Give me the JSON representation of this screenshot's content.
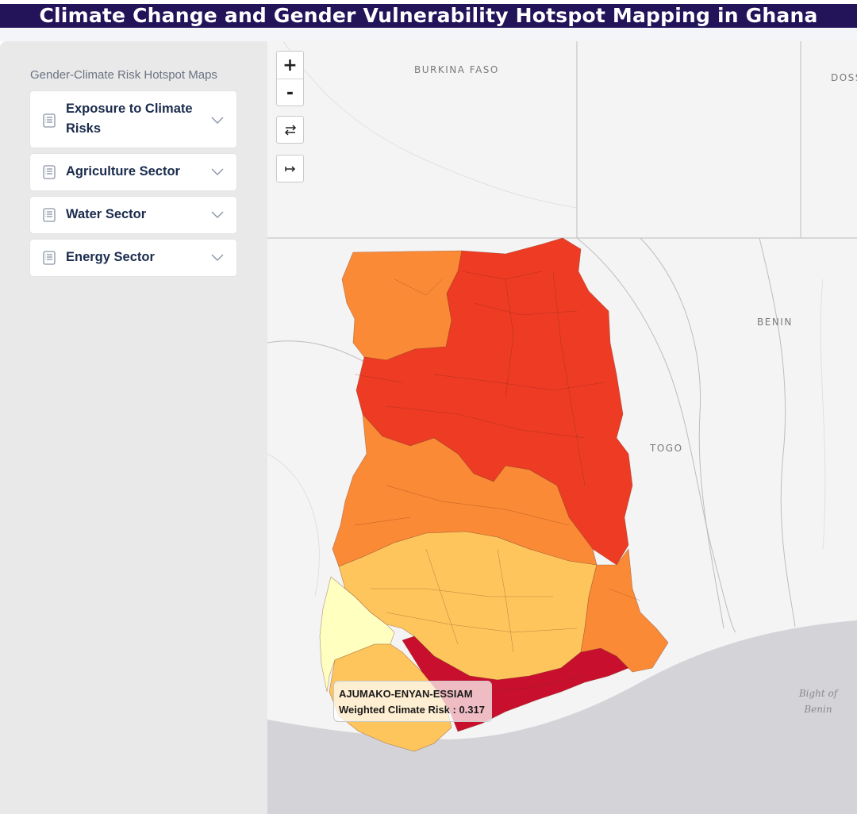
{
  "title": "Climate Change and Gender Vulnerability Hotspot Mapping in Ghana",
  "sidebar": {
    "heading": "Gender-Climate Risk Hotspot Maps",
    "items": [
      {
        "label": "Exposure to Climate Risks",
        "icon": "list-document-icon",
        "chevron": "chevron-down-icon"
      },
      {
        "label": "Agriculture Sector",
        "icon": "list-document-icon",
        "chevron": "chevron-down-icon"
      },
      {
        "label": "Water Sector",
        "icon": "list-document-icon",
        "chevron": "chevron-down-icon"
      },
      {
        "label": "Energy Sector",
        "icon": "list-document-icon",
        "chevron": "chevron-down-icon"
      }
    ]
  },
  "map": {
    "controls": {
      "zoom_in": "+",
      "zoom_out": "-",
      "swap_icon": "swap-arrows-icon",
      "expand_icon": "arrow-right-to-bar-icon"
    },
    "labels": {
      "burkina_faso": "BURKINA FASO",
      "dosso": "DOSS",
      "benin": "BENIN",
      "togo": "TOGO",
      "bight_line1": "Bight of",
      "bight_line2": "Benin"
    },
    "tooltip": {
      "district": "AJUMAKO-ENYAN-ESSIAM",
      "metric": "Weighted Climate Risk : 0.317"
    },
    "colors": {
      "very_high": "#c8102e",
      "high": "#ee3b24",
      "medium_high": "#fb8a36",
      "medium": "#fec55d",
      "low": "#ffffbf",
      "sea": "#d4d4d8",
      "land": "#f4f4f4",
      "title_bar": "#23145a"
    }
  }
}
